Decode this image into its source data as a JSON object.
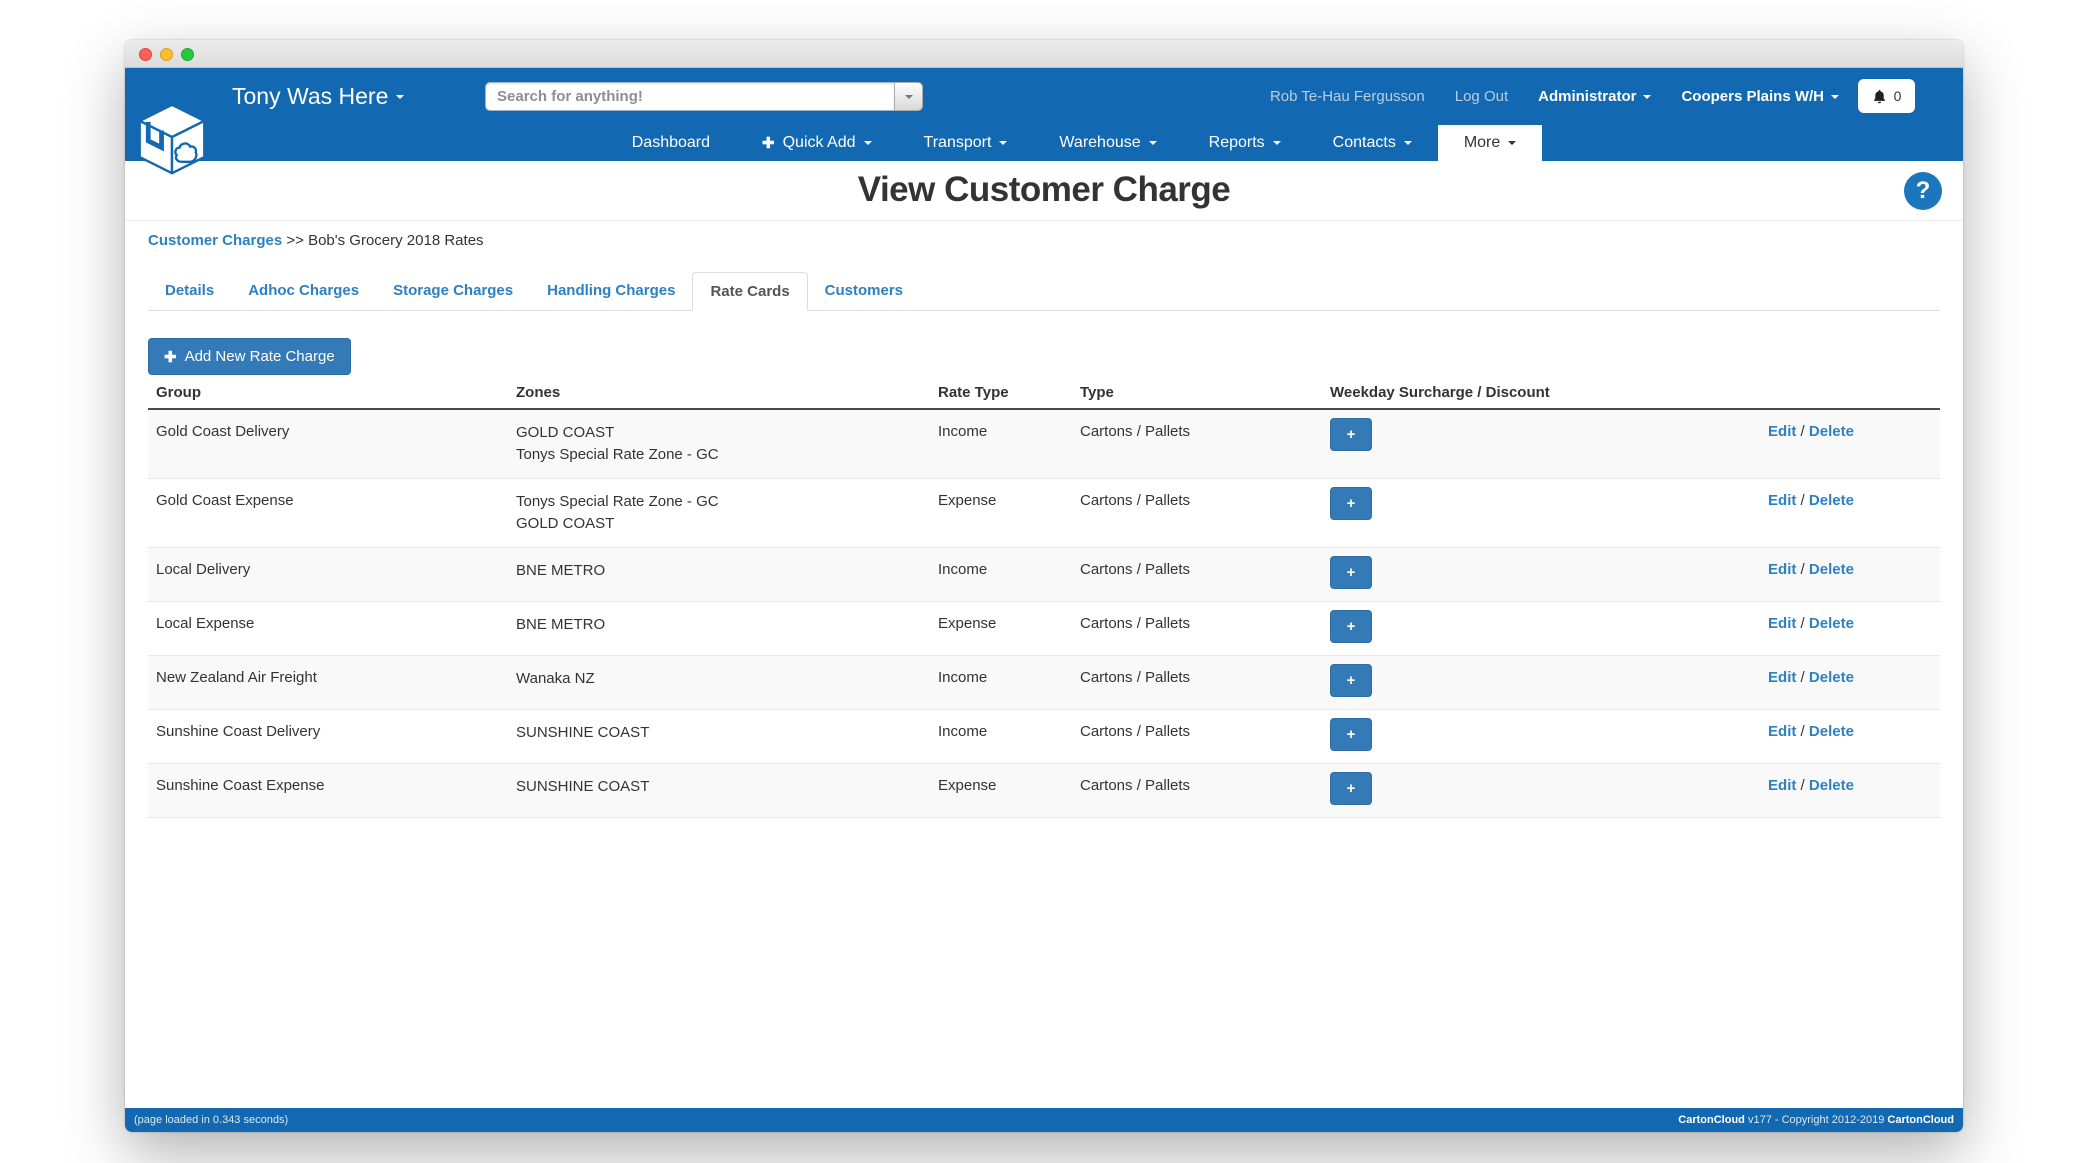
{
  "colors": {
    "header_blue": "#1268b1",
    "link_blue": "#2e80c0",
    "button_blue": "#337ab7",
    "row_stripe": "#f9f9f9"
  },
  "header": {
    "brand": "Tony Was Here",
    "search": {
      "placeholder": "Search for anything!"
    },
    "user": {
      "name": "Rob Te-Hau Fergusson",
      "logout": "Log Out",
      "role": "Administrator",
      "warehouse": "Coopers Plains W/H",
      "notification_count": "0"
    }
  },
  "nav": {
    "items": [
      {
        "label": "Dashboard",
        "plus": false,
        "caret": false,
        "active": false
      },
      {
        "label": "Quick Add",
        "plus": true,
        "caret": true,
        "active": false
      },
      {
        "label": "Transport",
        "plus": false,
        "caret": true,
        "active": false
      },
      {
        "label": "Warehouse",
        "plus": false,
        "caret": true,
        "active": false
      },
      {
        "label": "Reports",
        "plus": false,
        "caret": true,
        "active": false
      },
      {
        "label": "Contacts",
        "plus": false,
        "caret": true,
        "active": false
      },
      {
        "label": "More",
        "plus": false,
        "caret": true,
        "active": true
      }
    ]
  },
  "page": {
    "title": "View Customer Charge",
    "help_label": "?",
    "breadcrumb": {
      "link": "Customer Charges",
      "separator": ">>",
      "current": "Bob's Grocery 2018 Rates"
    }
  },
  "tabs": [
    {
      "label": "Details",
      "active": false
    },
    {
      "label": "Adhoc Charges",
      "active": false
    },
    {
      "label": "Storage Charges",
      "active": false
    },
    {
      "label": "Handling Charges",
      "active": false
    },
    {
      "label": "Rate Cards",
      "active": true
    },
    {
      "label": "Customers",
      "active": false
    }
  ],
  "toolbar": {
    "add_button": "Add New Rate Charge",
    "plus_glyph": "✚"
  },
  "rate_table": {
    "headers": [
      "Group",
      "Zones",
      "Rate Type",
      "Type",
      "Weekday Surcharge / Discount"
    ],
    "actions": {
      "edit": "Edit",
      "separator": "/",
      "delete": "Delete"
    },
    "weekday_button": "+",
    "rows": [
      {
        "group": "Gold Coast Delivery",
        "zones": [
          "GOLD COAST",
          "Tonys Special Rate Zone - GC"
        ],
        "rate_type": "Income",
        "type": "Cartons / Pallets"
      },
      {
        "group": "Gold Coast Expense",
        "zones": [
          "Tonys Special Rate Zone - GC",
          "GOLD COAST"
        ],
        "rate_type": "Expense",
        "type": "Cartons / Pallets"
      },
      {
        "group": "Local Delivery",
        "zones": [
          "BNE METRO"
        ],
        "rate_type": "Income",
        "type": "Cartons / Pallets"
      },
      {
        "group": "Local Expense",
        "zones": [
          "BNE METRO"
        ],
        "rate_type": "Expense",
        "type": "Cartons / Pallets"
      },
      {
        "group": "New Zealand Air Freight",
        "zones": [
          "Wanaka NZ"
        ],
        "rate_type": "Income",
        "type": "Cartons / Pallets"
      },
      {
        "group": "Sunshine Coast Delivery",
        "zones": [
          "SUNSHINE COAST"
        ],
        "rate_type": "Income",
        "type": "Cartons / Pallets"
      },
      {
        "group": "Sunshine Coast Expense",
        "zones": [
          "SUNSHINE COAST"
        ],
        "rate_type": "Expense",
        "type": "Cartons / Pallets"
      }
    ]
  },
  "footer": {
    "left": "(page loaded in 0.343 seconds)",
    "brand1": "CartonCloud",
    "middle": " v177 - Copyright 2012-2019 ",
    "brand2": "CartonCloud"
  }
}
